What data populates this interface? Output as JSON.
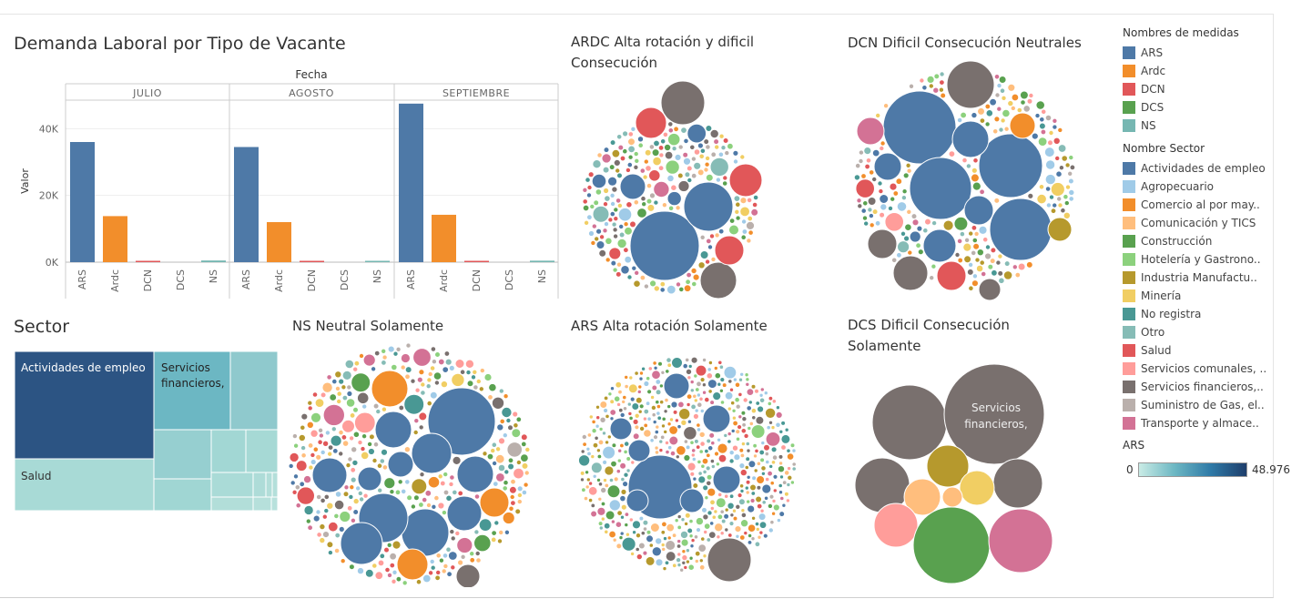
{
  "bar_title": "Demanda Laboral por Tipo de Vacante",
  "colors": {
    "ARS": "#4e79a7",
    "Ardc": "#f28e2b",
    "DCN": "#e15759",
    "DCS": "#59a14f",
    "NS": "#76b7b2",
    "sectors": [
      "#4e79a7",
      "#a0cbe8",
      "#f28e2b",
      "#ffbe7d",
      "#59a14f",
      "#8cd17d",
      "#b6992d",
      "#f1ce63",
      "#499894",
      "#86bcb6",
      "#e15759",
      "#ff9d9a",
      "#79706e",
      "#bab0ac",
      "#d37295"
    ]
  },
  "chart_data": [
    {
      "type": "bar",
      "title": "Demanda Laboral por Tipo de Vacante",
      "facet_label": "Fecha",
      "ylabel": "Valor",
      "ylim": [
        0,
        48000
      ],
      "yticks": [
        "0K",
        "20K",
        "40K"
      ],
      "panels": [
        "JULIO",
        "AGOSTO",
        "SEPTIEMBRE"
      ],
      "categories": [
        "ARS",
        "Ardc",
        "DCN",
        "DCS",
        "NS"
      ],
      "series": [
        {
          "panel": "JULIO",
          "values": [
            36000,
            13800,
            300,
            0,
            500
          ]
        },
        {
          "panel": "AGOSTO",
          "values": [
            34500,
            12000,
            300,
            0,
            350
          ]
        },
        {
          "panel": "SEPTIEMBRE",
          "values": [
            47500,
            14200,
            300,
            0,
            450
          ]
        }
      ]
    },
    {
      "type": "treemap",
      "title": "Sector",
      "labels": [
        "Actividades de empleo",
        "Salud",
        "Servicios financieros,"
      ]
    },
    {
      "type": "packed-bubble",
      "title": "ARDC Alta rotación y dificil Consecución"
    },
    {
      "type": "packed-bubble",
      "title": "DCN Dificil Consecución Neutrales"
    },
    {
      "type": "packed-bubble",
      "title": "NS Neutral Solamente"
    },
    {
      "type": "packed-bubble",
      "title": "ARS Alta rotación Solamente"
    },
    {
      "type": "packed-bubble",
      "title": "DCS Dificil Consecución Solamente",
      "labels": [
        "Servicios financieros,"
      ]
    }
  ],
  "titles": {
    "sector": "Sector",
    "ardc_1": "ARDC Alta rotación y dificil",
    "ardc_2": "Consecución",
    "dcn": "DCN Dificil Consecución Neutrales",
    "ns": "NS Neutral Solamente",
    "ars": "ARS Alta rotación Solamente",
    "dcs_1": "DCS Dificil Consecución",
    "dcs_2": "Solamente"
  },
  "treemap_labels": {
    "actividades": "Actividades de empleo",
    "salud": "Salud",
    "servicios_1": "Servicios",
    "servicios_2": "financieros,"
  },
  "dcs_bubble_label": {
    "line1": "Servicios",
    "line2": "financieros,"
  },
  "legend": {
    "measures_title": "Nombres de medidas",
    "measures": [
      {
        "label": "ARS",
        "color": "#4e79a7"
      },
      {
        "label": "Ardc",
        "color": "#f28e2b"
      },
      {
        "label": "DCN",
        "color": "#e15759"
      },
      {
        "label": "DCS",
        "color": "#59a14f"
      },
      {
        "label": "NS",
        "color": "#76b7b2"
      }
    ],
    "sector_title": "Nombre Sector",
    "sectors": [
      {
        "label": "Actividades de empleo",
        "color": "#4e79a7"
      },
      {
        "label": "Agropecuario",
        "color": "#a0cbe8"
      },
      {
        "label": "Comercio al por may..",
        "color": "#f28e2b"
      },
      {
        "label": "Comunicación y TICS",
        "color": "#ffbe7d"
      },
      {
        "label": "Construcción",
        "color": "#59a14f"
      },
      {
        "label": "Hotelería y Gastrono..",
        "color": "#8cd17d"
      },
      {
        "label": "Industria Manufactu..",
        "color": "#b6992d"
      },
      {
        "label": "Minería",
        "color": "#f1ce63"
      },
      {
        "label": "No registra",
        "color": "#499894"
      },
      {
        "label": "Otro",
        "color": "#86bcb6"
      },
      {
        "label": "Salud",
        "color": "#e15759"
      },
      {
        "label": "Servicios comunales, ..",
        "color": "#ff9d9a"
      },
      {
        "label": "Servicios financieros,..",
        "color": "#79706e"
      },
      {
        "label": "Suministro de Gas, el..",
        "color": "#bab0ac"
      },
      {
        "label": "Transporte y almace..",
        "color": "#d37295"
      }
    ],
    "ars_title": "ARS",
    "ars_min": "0",
    "ars_max": "48.976"
  }
}
